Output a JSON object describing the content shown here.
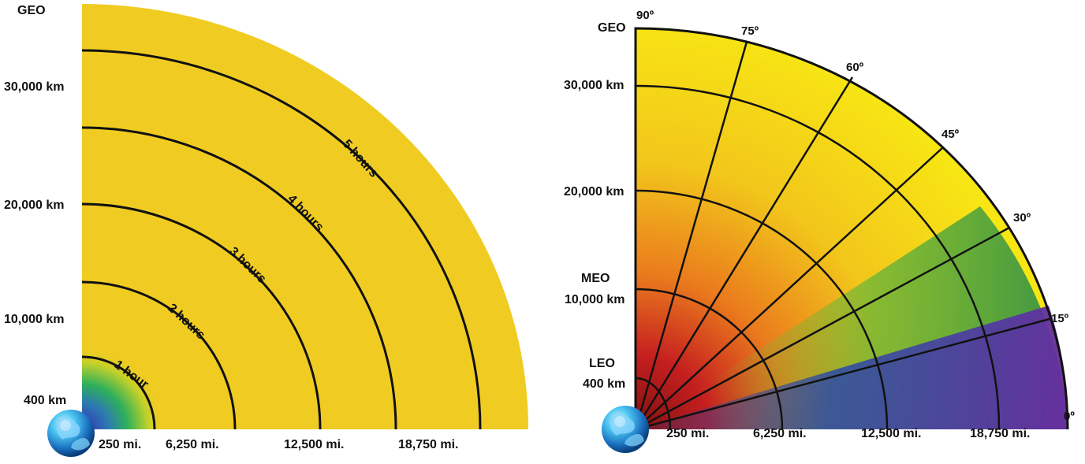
{
  "left_diagram": {
    "y_labels": [
      "GEO",
      "30,000 km",
      "20,000 km",
      "10,000 km",
      "400 km"
    ],
    "x_labels": [
      "250 mi.",
      "6,250 mi.",
      "12,500 mi.",
      "18,750 mi."
    ],
    "curves": [
      "1 hour",
      "2 hours",
      "3 hours",
      "4 hours",
      "5 hours"
    ],
    "colors": {
      "fill": "#f0cc22",
      "center_blue": "#3a2bb8",
      "center_green": "#2fb05a"
    }
  },
  "right_diagram": {
    "y_labels": [
      "GEO",
      "30,000 km",
      "20,000 km",
      "MEO",
      "10,000 km",
      "LEO",
      "400 km"
    ],
    "x_labels": [
      "250 mi.",
      "6,250 mi.",
      "12,500 mi.",
      "18,750 mi."
    ],
    "angle_labels": [
      "90º",
      "75º",
      "60º",
      "45º",
      "30º",
      "15º",
      "0º"
    ],
    "colors": {
      "red": "#a81818",
      "orange": "#ee9a1f",
      "yellow": "#f6e414",
      "green": "#3c9b3a",
      "blue": "#2b3fa2",
      "purple": "#6a2aa2"
    }
  }
}
